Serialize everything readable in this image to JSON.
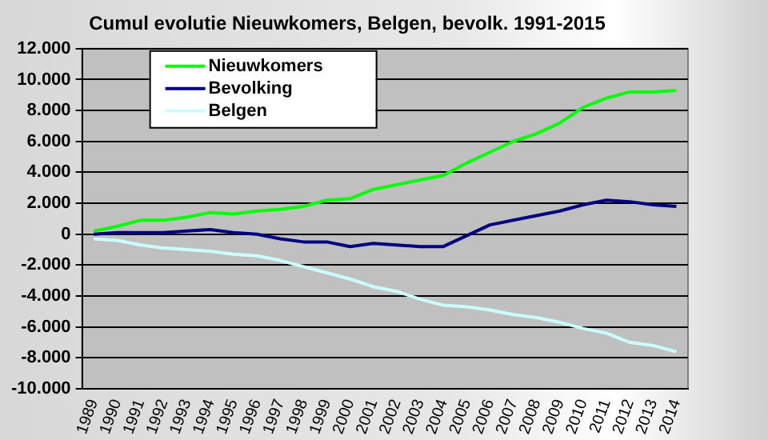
{
  "chart_data": {
    "type": "line",
    "title": "Cumul evolutie Nieuwkomers, Belgen, bevolk. 1991-2015",
    "categories": [
      "1989",
      "1990",
      "1991",
      "1992",
      "1993",
      "1994",
      "1995",
      "1996",
      "1997",
      "1998",
      "1999",
      "2000",
      "2001",
      "2002",
      "2003",
      "2004",
      "2005",
      "2006",
      "2007",
      "2008",
      "2009",
      "2010",
      "2011",
      "2012",
      "2013",
      "2014"
    ],
    "series": [
      {
        "name": "Nieuwkomers",
        "color": "#00ff00",
        "values": [
          200,
          500,
          900,
          900,
          1100,
          1400,
          1300,
          1500,
          1600,
          1800,
          2200,
          2300,
          2900,
          3200,
          3500,
          3800,
          4600,
          5300,
          6000,
          6500,
          7200,
          8200,
          8800,
          9200,
          9200,
          9300
        ]
      },
      {
        "name": "Bevolking",
        "color": "#000080",
        "values": [
          0,
          100,
          100,
          100,
          200,
          300,
          100,
          0,
          -300,
          -500,
          -500,
          -800,
          -600,
          -700,
          -800,
          -800,
          -100,
          600,
          900,
          1200,
          1500,
          1900,
          2200,
          2100,
          1900,
          1800
        ]
      },
      {
        "name": "Belgen",
        "color": "#ccffff",
        "values": [
          -300,
          -400,
          -700,
          -900,
          -1000,
          -1100,
          -1300,
          -1400,
          -1700,
          -2100,
          -2500,
          -2900,
          -3400,
          -3700,
          -4200,
          -4600,
          -4700,
          -4900,
          -5200,
          -5400,
          -5700,
          -6100,
          -6400,
          -7000,
          -7200,
          -7600
        ]
      }
    ],
    "ylim": [
      -10000,
      12000
    ],
    "yticks": [
      {
        "value": -10000,
        "label": "-10.000"
      },
      {
        "value": -8000,
        "label": "-8.000"
      },
      {
        "value": -6000,
        "label": "-6.000"
      },
      {
        "value": -4000,
        "label": "-4.000"
      },
      {
        "value": -2000,
        "label": "-2.000"
      },
      0,
      {
        "value": 2000,
        "label": "2.000"
      },
      {
        "value": 4000,
        "label": "4.000"
      },
      {
        "value": 6000,
        "label": "6.000"
      },
      {
        "value": 8000,
        "label": "8.000"
      },
      {
        "value": 10000,
        "label": "10.000"
      },
      {
        "value": 12000,
        "label": "12.000"
      }
    ],
    "grid": "y",
    "legend": "top left",
    "marker": "none",
    "line_style": "solid"
  }
}
